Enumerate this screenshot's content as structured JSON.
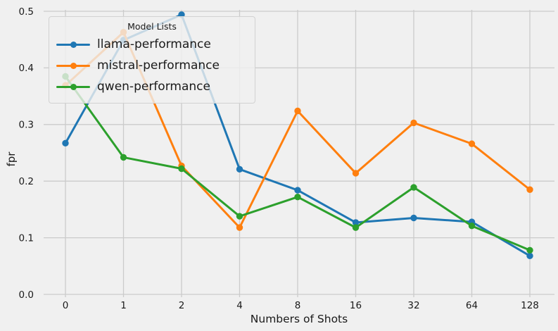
{
  "figure": {
    "background_color": "#f0f0f0",
    "grid_color": "#cbcbcb",
    "text_color": "#1a1a1a"
  },
  "legend": {
    "title": "Model Lists",
    "entries": [
      {
        "label": "llama-performance",
        "color": "#1f77b4"
      },
      {
        "label": "mistral-performance",
        "color": "#ff7f0e"
      },
      {
        "label": "qwen-performance",
        "color": "#2ca02c"
      }
    ]
  },
  "chart_data": {
    "type": "line",
    "title": "",
    "xlabel": "Numbers of Shots",
    "ylabel": "fpr",
    "categories": [
      "0",
      "1",
      "2",
      "4",
      "8",
      "16",
      "32",
      "64",
      "128"
    ],
    "series": [
      {
        "name": "llama-performance",
        "color": "#1f77b4",
        "values": [
          0.267,
          0.449,
          0.494,
          0.221,
          0.184,
          0.127,
          0.135,
          0.128,
          0.068
        ]
      },
      {
        "name": "mistral-performance",
        "color": "#ff7f0e",
        "values": [
          0.369,
          0.463,
          0.227,
          0.118,
          0.324,
          0.214,
          0.303,
          0.266,
          0.185
        ]
      },
      {
        "name": "qwen-performance",
        "color": "#2ca02c",
        "values": [
          0.385,
          0.242,
          0.222,
          0.138,
          0.172,
          0.118,
          0.189,
          0.121,
          0.078
        ]
      }
    ],
    "ylim": [
      0.0,
      0.5
    ],
    "yticks": [
      0.0,
      0.1,
      0.2,
      0.3,
      0.4,
      0.5
    ],
    "grid": true,
    "marker": "o",
    "legend_position": "upper left",
    "legend_title": "Model Lists"
  }
}
